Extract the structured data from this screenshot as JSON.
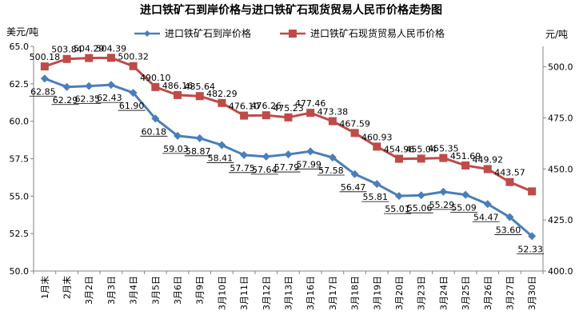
{
  "chart_data": {
    "type": "line",
    "title": "进口铁矿石到岸价格与进口铁矿石现货贸易人民币价格走势图",
    "ylabel_left": "美元/吨",
    "ylabel_right": "元/吨",
    "categories": [
      "1月末",
      "2月末",
      "3月2日",
      "3月3日",
      "3月4日",
      "3月5日",
      "3月6日",
      "3月9日",
      "3月10日",
      "3月11日",
      "3月12日",
      "3月13日",
      "3月16日",
      "3月17日",
      "3月18日",
      "3月19日",
      "3月20日",
      "3月23日",
      "3月24日",
      "3月25日",
      "3月26日",
      "3月27日",
      "3月30日"
    ],
    "ylim_left": [
      50.0,
      65.0
    ],
    "yticks_left": [
      "50.0",
      "52.5",
      "55.0",
      "57.5",
      "60.0",
      "62.5",
      "65.0"
    ],
    "ylim_right": [
      400.0,
      510.0
    ],
    "yticks_right": [
      "400.0",
      "425.0",
      "450.0",
      "475.0",
      "500.0"
    ],
    "series": [
      {
        "name": "进口铁矿石到岸价格",
        "axis": "left",
        "color": "#4A7EBB",
        "marker": "diamond",
        "values": [
          62.85,
          62.29,
          62.35,
          62.43,
          61.9,
          60.18,
          59.03,
          58.87,
          58.41,
          57.75,
          57.64,
          57.79,
          57.99,
          57.58,
          56.47,
          55.81,
          55.01,
          55.06,
          55.29,
          55.09,
          54.47,
          53.6,
          52.33
        ],
        "labels": [
          "62.85",
          "62.29",
          "62.35",
          "62.43",
          "61.90",
          "60.18",
          "59.03",
          "58.87",
          "58.41",
          "57.75",
          "57.64",
          "57.79",
          "57.99",
          "57.58",
          "56.47",
          "55.81",
          "55.01",
          "55.06",
          "55.29",
          "55.09",
          "54.47",
          "53.60",
          "52.33"
        ]
      },
      {
        "name": "进口铁矿石现货贸易人民币价格",
        "axis": "right",
        "color": "#BE4B48",
        "marker": "square",
        "values": [
          500.18,
          503.84,
          504.29,
          504.39,
          500.32,
          490.1,
          486.16,
          485.64,
          482.29,
          476.1,
          476.26,
          475.23,
          477.46,
          473.38,
          467.59,
          460.93,
          454.96,
          455.04,
          455.35,
          451.69,
          449.92,
          443.57,
          439.0
        ],
        "labels": [
          "500.18",
          "503.84",
          "504.29",
          "504.39",
          "500.32",
          "490.10",
          "486.16",
          "485.64",
          "482.29",
          "476.10",
          "476.26",
          "475.23",
          "477.46",
          "473.38",
          "467.59",
          "460.93",
          "454.96",
          "455.04",
          "455.35",
          "451.69",
          "449.92",
          "443.57",
          ""
        ]
      }
    ],
    "legend_placement": "top",
    "grid": false
  }
}
